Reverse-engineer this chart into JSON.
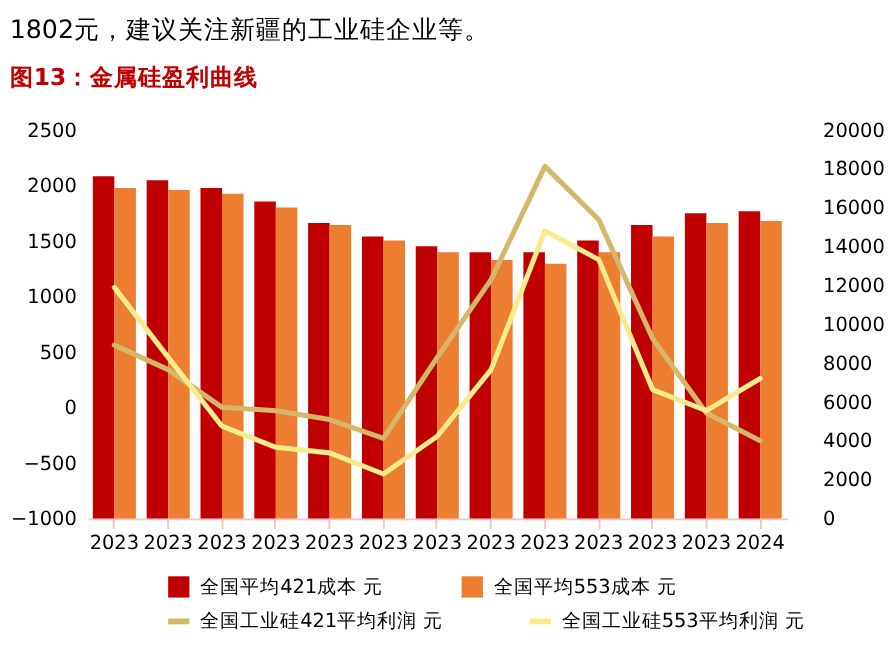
{
  "chart_data": {
    "type": "bar",
    "title": "图13：金属硅盈利曲线",
    "annotations": [
      "1802元，建议关注新疆的工业硅企业等。"
    ],
    "categories": [
      "2023",
      "2023",
      "2023",
      "2023",
      "2023",
      "2023",
      "2023",
      "2023",
      "2023",
      "2023",
      "2023",
      "2023",
      "2024"
    ],
    "series": [
      {
        "name": "全国平均421成本 元",
        "color": "#c00000",
        "axis": "y2",
        "values": [
          17600,
          17400,
          17000,
          16300,
          15200,
          14500,
          14000,
          13700,
          13700,
          14300,
          15100,
          15700,
          15800
        ]
      },
      {
        "name": "全国平均553成本 元",
        "color": "#ed7d31",
        "axis": "y2",
        "values": [
          17000,
          16900,
          16700,
          16000,
          15100,
          14300,
          13700,
          13300,
          13100,
          13700,
          14500,
          15200,
          15300
        ]
      },
      {
        "name": "全国工业硅421平均利润 元",
        "type": "line",
        "color": "#d4b86a",
        "values": [
          560,
          340,
          0,
          -30,
          -110,
          -280,
          450,
          1150,
          2170,
          1690,
          620,
          -50,
          -300
        ]
      },
      {
        "name": "全国工业硅553平均利润 元",
        "type": "line",
        "color": "#f8eb8c",
        "values": [
          1080,
          450,
          -170,
          -360,
          -410,
          -600,
          -260,
          340,
          1590,
          1330,
          160,
          -30,
          260
        ]
      }
    ],
    "ylim": [
      -1000,
      2500
    ],
    "yticks": [
      -1000,
      -500,
      0,
      500,
      1000,
      1500,
      2000,
      2500
    ],
    "y2lim": [
      0,
      20000
    ],
    "y2ticks": [
      0,
      2000,
      4000,
      6000,
      8000,
      10000,
      12000,
      14000,
      16000,
      18000,
      20000
    ],
    "grid": false,
    "legend": "bottom"
  }
}
